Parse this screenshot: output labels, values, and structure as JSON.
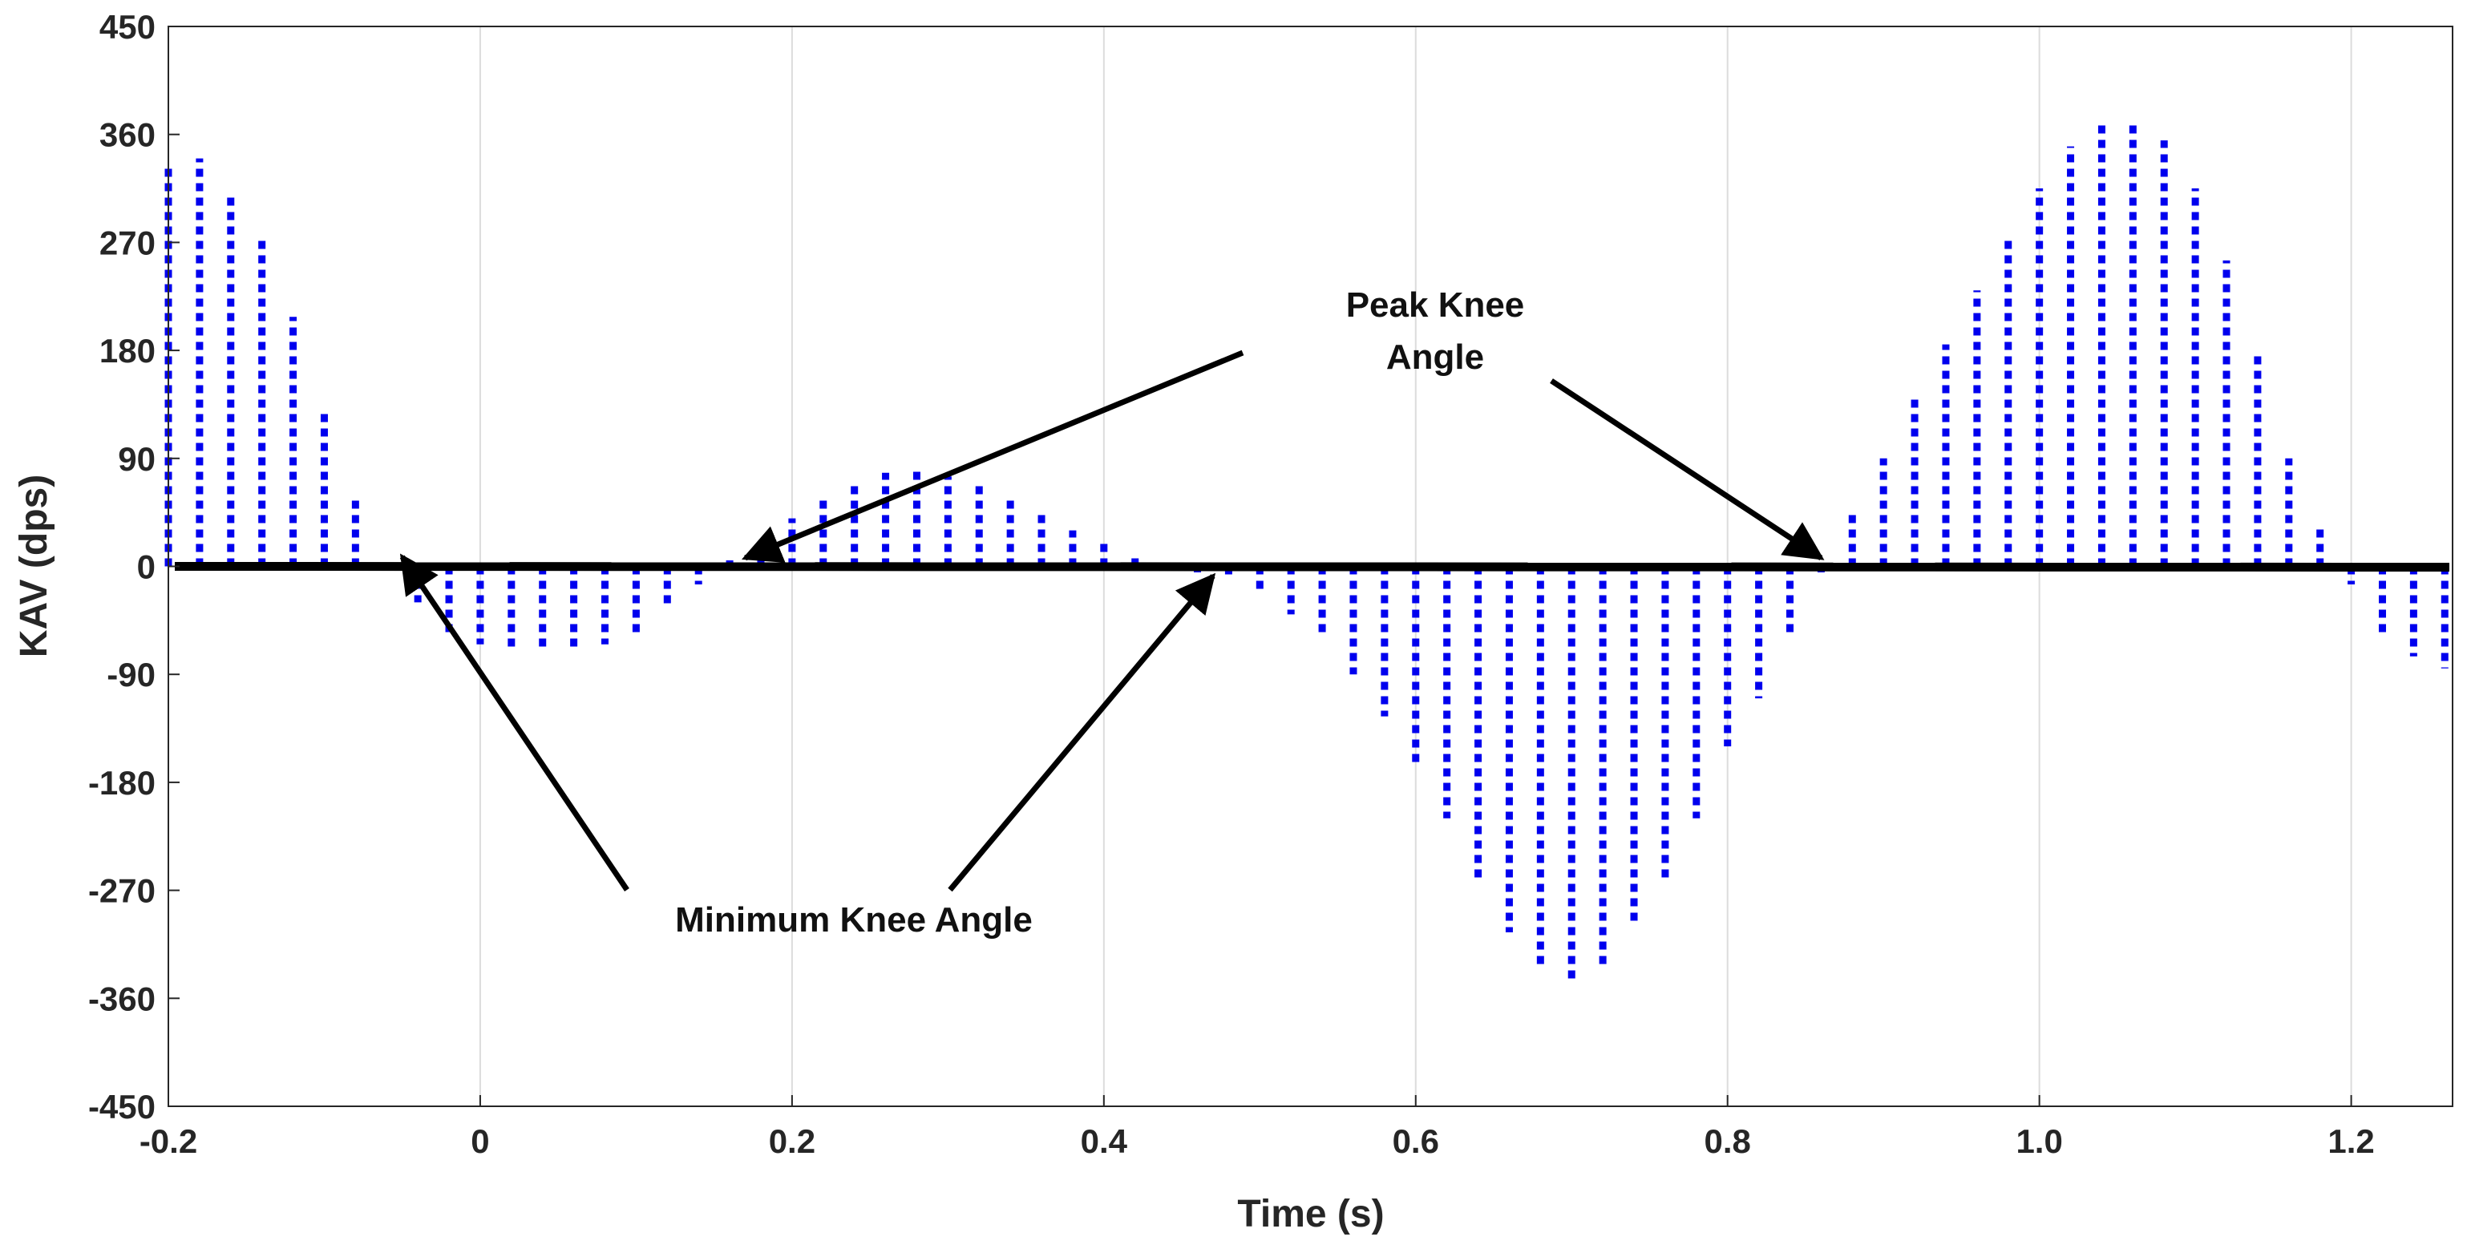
{
  "chart_data": {
    "type": "bar",
    "title": "",
    "xlabel": "Time (s)",
    "ylabel": "KAV (dps)",
    "xlim": [
      -0.2,
      1.265
    ],
    "ylim": [
      -450,
      450
    ],
    "grid": "vertical",
    "x_ticks": [
      -0.2,
      0,
      0.2,
      0.4,
      0.6,
      0.8,
      1.0,
      1.2
    ],
    "x_tick_labels": [
      "-0.2",
      "0",
      "0.2",
      "0.4",
      "0.6",
      "0.8",
      "1.0",
      "1.2"
    ],
    "y_ticks": [
      450,
      360,
      270,
      180,
      90,
      0,
      -90,
      -180,
      -270,
      -360,
      -450
    ],
    "y_tick_labels": [
      "450",
      "360",
      "270",
      "180",
      "90",
      "0",
      "-90",
      "-180",
      "-270",
      "-360",
      "-450"
    ],
    "series": [
      {
        "name": "KAV",
        "style": "dotted stems",
        "color": "#0000ee",
        "x": [
          -0.2,
          -0.18,
          -0.16,
          -0.14,
          -0.12,
          -0.1,
          -0.08,
          -0.06,
          -0.04,
          -0.02,
          0.0,
          0.02,
          0.04,
          0.06,
          0.08,
          0.1,
          0.12,
          0.14,
          0.16,
          0.18,
          0.2,
          0.22,
          0.24,
          0.26,
          0.28,
          0.3,
          0.32,
          0.34,
          0.36,
          0.38,
          0.4,
          0.42,
          0.44,
          0.46,
          0.48,
          0.5,
          0.52,
          0.54,
          0.56,
          0.58,
          0.6,
          0.62,
          0.64,
          0.66,
          0.68,
          0.7,
          0.72,
          0.74,
          0.76,
          0.78,
          0.8,
          0.82,
          0.84,
          0.86,
          0.88,
          0.9,
          0.92,
          0.94,
          0.96,
          0.98,
          1.0,
          1.02,
          1.04,
          1.06,
          1.08,
          1.1,
          1.12,
          1.14,
          1.16,
          1.18,
          1.2,
          1.22,
          1.24,
          1.26
        ],
        "values": [
          335,
          340,
          312,
          275,
          208,
          128,
          60,
          2,
          -30,
          -55,
          -65,
          -72,
          -72,
          -70,
          -65,
          -55,
          -35,
          -15,
          5,
          20,
          40,
          58,
          70,
          78,
          80,
          75,
          70,
          55,
          45,
          30,
          20,
          8,
          -2,
          -5,
          -10,
          -20,
          -40,
          -60,
          -90,
          -125,
          -165,
          -210,
          -260,
          -305,
          -335,
          -345,
          -335,
          -300,
          -260,
          -210,
          -150,
          -110,
          -55,
          -5,
          45,
          90,
          140,
          185,
          230,
          275,
          315,
          350,
          370,
          370,
          355,
          315,
          255,
          180,
          90,
          35,
          -15,
          -55,
          -75,
          -85
        ]
      }
    ],
    "baseline": {
      "y": 0,
      "style": "thick black line"
    },
    "annotations": [
      {
        "text_lines": [
          "Peak Knee",
          "Angle"
        ],
        "targets": [
          [
            0.17,
            7
          ],
          [
            0.86,
            7
          ]
        ]
      },
      {
        "text": "Minimum Knee Angle",
        "targets": [
          [
            -0.05,
            8
          ],
          [
            0.47,
            -8
          ]
        ]
      }
    ]
  }
}
